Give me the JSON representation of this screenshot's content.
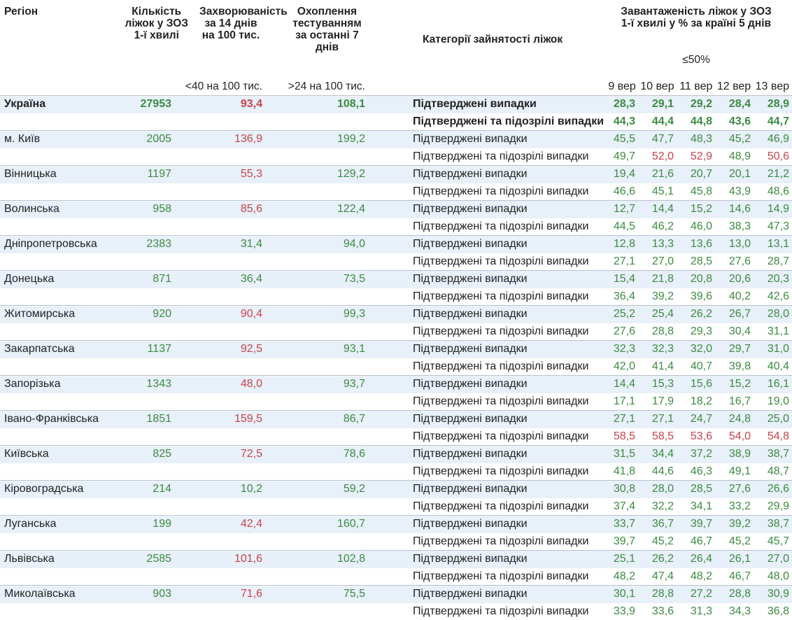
{
  "header": {
    "region": "Регіон",
    "beds": "Кількість\nліжок у ЗОЗ\n1-ї хвилі",
    "incidence": "Захворюваність\nза 14 днів\nна 100 тис.",
    "coverage": "Охоплення\nтестуванням\nза останні 7 днів",
    "category": "Категорії зайнятості ліжок",
    "load": "Завантаженість ліжок у ЗОЗ\n1-ї хвилі у % за країні 5 днів",
    "incidence_note": "<40 на 100 тис.",
    "coverage_note": ">24 на 100 тис.",
    "load_note": "≤50%",
    "days": [
      "9 вер",
      "10 вер",
      "11 вер",
      "12 вер",
      "13 вер"
    ]
  },
  "categories": [
    "Підтверджені випадки",
    "Підтверджені та підозрілі випадки"
  ],
  "colors": {
    "good": "#3b8b40",
    "bad": "#c8434b"
  },
  "rows": [
    {
      "region": "Україна",
      "beds": 27953,
      "incidence": "93,4",
      "coverage": "108,1",
      "confirmed": [
        "28,3",
        "29,1",
        "29,2",
        "28,4",
        "28,9"
      ],
      "suspected": [
        "44,3",
        "44,4",
        "44,8",
        "43,6",
        "44,7"
      ],
      "red": [
        "incidence"
      ]
    },
    {
      "region": "м. Київ",
      "beds": 2005,
      "incidence": "136,9",
      "coverage": "199,2",
      "confirmed": [
        "45,5",
        "47,7",
        "48,3",
        "45,2",
        "46,9"
      ],
      "suspected": [
        "49,7",
        "52,0",
        "52,9",
        "48,9",
        "50,6"
      ],
      "red": [
        "incidence",
        "suspected.1",
        "suspected.2",
        "suspected.4"
      ]
    },
    {
      "region": "Вінницька",
      "beds": 1197,
      "incidence": "55,3",
      "coverage": "129,2",
      "confirmed": [
        "19,4",
        "21,6",
        "20,7",
        "20,1",
        "21,2"
      ],
      "suspected": [
        "46,6",
        "45,1",
        "45,8",
        "43,9",
        "48,6"
      ],
      "red": [
        "incidence"
      ]
    },
    {
      "region": "Волинська",
      "beds": 958,
      "incidence": "85,6",
      "coverage": "122,4",
      "confirmed": [
        "12,7",
        "14,4",
        "15,2",
        "14,6",
        "14,9"
      ],
      "suspected": [
        "44,5",
        "46,2",
        "46,0",
        "38,3",
        "47,3"
      ],
      "red": [
        "incidence"
      ]
    },
    {
      "region": "Дніпропетровська",
      "beds": 2383,
      "incidence": "31,4",
      "coverage": "94,0",
      "confirmed": [
        "12,8",
        "13,3",
        "13,6",
        "13,0",
        "13,1"
      ],
      "suspected": [
        "27,1",
        "27,0",
        "28,5",
        "27,6",
        "28,7"
      ],
      "red": []
    },
    {
      "region": "Донецька",
      "beds": 871,
      "incidence": "36,4",
      "coverage": "73,5",
      "confirmed": [
        "15,4",
        "21,8",
        "20,8",
        "20,6",
        "20,3"
      ],
      "suspected": [
        "36,4",
        "39,2",
        "39,6",
        "40,2",
        "42,6"
      ],
      "red": []
    },
    {
      "region": "Житомирська",
      "beds": 920,
      "incidence": "90,4",
      "coverage": "99,3",
      "confirmed": [
        "25,2",
        "25,4",
        "26,2",
        "26,7",
        "28,0"
      ],
      "suspected": [
        "27,6",
        "28,8",
        "29,3",
        "30,4",
        "31,1"
      ],
      "red": [
        "incidence"
      ]
    },
    {
      "region": "Закарпатська",
      "beds": 1137,
      "incidence": "92,5",
      "coverage": "93,1",
      "confirmed": [
        "32,3",
        "32,3",
        "32,0",
        "29,7",
        "31,0"
      ],
      "suspected": [
        "42,0",
        "41,4",
        "40,7",
        "39,8",
        "40,4"
      ],
      "red": [
        "incidence"
      ]
    },
    {
      "region": "Запорізька",
      "beds": 1343,
      "incidence": "48,0",
      "coverage": "93,7",
      "confirmed": [
        "14,4",
        "15,3",
        "15,6",
        "15,2",
        "16,1"
      ],
      "suspected": [
        "17,1",
        "17,9",
        "18,2",
        "16,7",
        "19,0"
      ],
      "red": [
        "incidence"
      ]
    },
    {
      "region": "Івано-Франківська",
      "beds": 1851,
      "incidence": "159,5",
      "coverage": "86,7",
      "confirmed": [
        "27,1",
        "27,1",
        "24,7",
        "24,8",
        "25,0"
      ],
      "suspected": [
        "58,5",
        "58,5",
        "53,6",
        "54,0",
        "54,8"
      ],
      "red": [
        "incidence",
        "suspected.0",
        "suspected.1",
        "suspected.2",
        "suspected.3",
        "suspected.4"
      ]
    },
    {
      "region": "Київська",
      "beds": 825,
      "incidence": "72,5",
      "coverage": "78,6",
      "confirmed": [
        "31,5",
        "34,4",
        "37,2",
        "38,9",
        "38,7"
      ],
      "suspected": [
        "41,8",
        "44,6",
        "46,3",
        "49,1",
        "48,7"
      ],
      "red": [
        "incidence"
      ]
    },
    {
      "region": "Кіровоградська",
      "beds": 214,
      "incidence": "10,2",
      "coverage": "59,2",
      "confirmed": [
        "30,8",
        "28,0",
        "28,5",
        "27,6",
        "26,6"
      ],
      "suspected": [
        "37,4",
        "32,2",
        "34,1",
        "33,2",
        "29,9"
      ],
      "red": []
    },
    {
      "region": "Луганська",
      "beds": 199,
      "incidence": "42,4",
      "coverage": "160,7",
      "confirmed": [
        "33,7",
        "36,7",
        "39,7",
        "39,2",
        "38,7"
      ],
      "suspected": [
        "39,7",
        "45,2",
        "46,7",
        "45,2",
        "45,7"
      ],
      "red": [
        "incidence"
      ]
    },
    {
      "region": "Львівська",
      "beds": 2585,
      "incidence": "101,6",
      "coverage": "102,8",
      "confirmed": [
        "25,1",
        "26,2",
        "26,4",
        "26,1",
        "27,0"
      ],
      "suspected": [
        "48,2",
        "47,4",
        "48,2",
        "46,7",
        "48,0"
      ],
      "red": [
        "incidence"
      ]
    },
    {
      "region": "Миколаївська",
      "beds": 903,
      "incidence": "71,6",
      "coverage": "75,5",
      "confirmed": [
        "30,1",
        "28,8",
        "27,2",
        "28,8",
        "30,9"
      ],
      "suspected": [
        "33,9",
        "33,6",
        "31,3",
        "34,3",
        "36,8"
      ],
      "red": [
        "incidence"
      ]
    }
  ]
}
